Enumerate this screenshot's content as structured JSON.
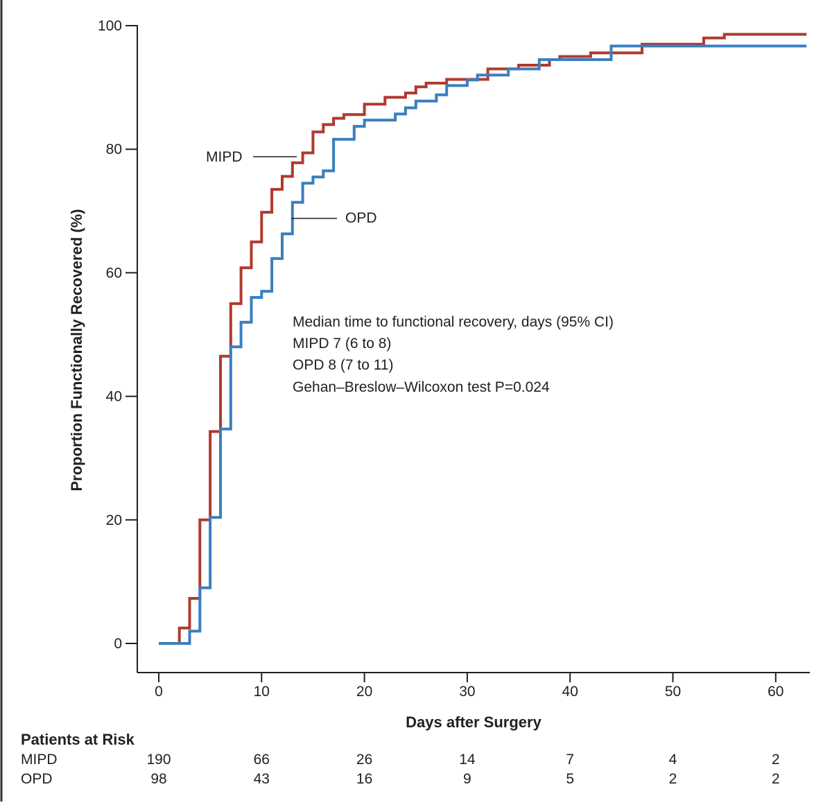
{
  "chart_data": {
    "type": "line",
    "subtype": "kaplan-meier step curve (cumulative incidence)",
    "xlabel": "Days after Surgery",
    "ylabel": "Proportion Functionally Recovered (%)",
    "xlim": [
      -2,
      63
    ],
    "ylim": [
      -5,
      100
    ],
    "xticks": [
      0,
      10,
      20,
      30,
      40,
      50,
      60
    ],
    "yticks": [
      0,
      20,
      40,
      60,
      80,
      100
    ],
    "series": [
      {
        "name": "MIPD",
        "color": "#b03a2e",
        "points": [
          [
            0,
            0
          ],
          [
            2,
            0
          ],
          [
            2,
            2.5
          ],
          [
            3,
            2.5
          ],
          [
            3,
            7.3
          ],
          [
            4,
            7.3
          ],
          [
            4,
            20
          ],
          [
            5,
            20
          ],
          [
            5,
            34.3
          ],
          [
            6,
            34.3
          ],
          [
            6,
            46.5
          ],
          [
            7,
            46.5
          ],
          [
            7,
            55
          ],
          [
            8,
            55
          ],
          [
            8,
            60.8
          ],
          [
            9,
            60.8
          ],
          [
            9,
            65
          ],
          [
            10,
            65
          ],
          [
            10,
            69.8
          ],
          [
            11,
            69.8
          ],
          [
            11,
            73.5
          ],
          [
            12,
            73.5
          ],
          [
            12,
            75.6
          ],
          [
            13,
            75.6
          ],
          [
            13,
            77.8
          ],
          [
            14,
            77.8
          ],
          [
            14,
            79.4
          ],
          [
            15,
            79.4
          ],
          [
            15,
            82.8
          ],
          [
            16,
            82.8
          ],
          [
            16,
            84
          ],
          [
            17,
            84
          ],
          [
            17,
            85
          ],
          [
            18,
            85
          ],
          [
            18,
            85.6
          ],
          [
            20,
            85.6
          ],
          [
            20,
            87.3
          ],
          [
            22,
            87.3
          ],
          [
            22,
            88.4
          ],
          [
            24,
            88.4
          ],
          [
            24,
            89.1
          ],
          [
            25,
            89.1
          ],
          [
            25,
            90.1
          ],
          [
            26,
            90.1
          ],
          [
            26,
            90.7
          ],
          [
            28,
            90.7
          ],
          [
            28,
            91.3
          ],
          [
            32,
            91.3
          ],
          [
            32,
            93
          ],
          [
            35,
            93
          ],
          [
            35,
            93.6
          ],
          [
            38,
            93.6
          ],
          [
            38,
            94.5
          ],
          [
            39,
            94.5
          ],
          [
            39,
            95
          ],
          [
            42,
            95
          ],
          [
            42,
            95.6
          ],
          [
            47,
            95.6
          ],
          [
            47,
            97
          ],
          [
            53,
            97
          ],
          [
            53,
            98
          ],
          [
            55,
            98
          ],
          [
            55,
            98.6
          ],
          [
            63,
            98.6
          ]
        ]
      },
      {
        "name": "OPD",
        "color": "#3a7fbf",
        "points": [
          [
            0,
            0
          ],
          [
            3,
            0
          ],
          [
            3,
            2
          ],
          [
            4,
            2
          ],
          [
            4,
            9
          ],
          [
            5,
            9
          ],
          [
            5,
            20.4
          ],
          [
            6,
            20.4
          ],
          [
            6,
            34.7
          ],
          [
            7,
            34.7
          ],
          [
            7,
            48
          ],
          [
            8,
            48
          ],
          [
            8,
            52
          ],
          [
            9,
            52
          ],
          [
            9,
            56
          ],
          [
            10,
            56
          ],
          [
            10,
            57
          ],
          [
            11,
            57
          ],
          [
            11,
            62.3
          ],
          [
            12,
            62.3
          ],
          [
            12,
            66.3
          ],
          [
            13,
            66.3
          ],
          [
            13,
            71.4
          ],
          [
            14,
            71.4
          ],
          [
            14,
            74.5
          ],
          [
            15,
            74.5
          ],
          [
            15,
            75.5
          ],
          [
            16,
            75.5
          ],
          [
            16,
            76.5
          ],
          [
            17,
            76.5
          ],
          [
            17,
            81.6
          ],
          [
            19,
            81.6
          ],
          [
            19,
            83.7
          ],
          [
            20,
            83.7
          ],
          [
            20,
            84.7
          ],
          [
            23,
            84.7
          ],
          [
            23,
            85.7
          ],
          [
            24,
            85.7
          ],
          [
            24,
            86.7
          ],
          [
            25,
            86.7
          ],
          [
            25,
            87.8
          ],
          [
            27,
            87.8
          ],
          [
            27,
            88.8
          ],
          [
            28,
            88.8
          ],
          [
            28,
            90.3
          ],
          [
            30,
            90.3
          ],
          [
            30,
            91.2
          ],
          [
            31,
            91.2
          ],
          [
            31,
            92
          ],
          [
            34,
            92
          ],
          [
            34,
            93
          ],
          [
            37,
            93
          ],
          [
            37,
            94.5
          ],
          [
            44,
            94.5
          ],
          [
            44,
            96.7
          ],
          [
            63,
            96.7
          ]
        ]
      }
    ],
    "curve_labels": [
      {
        "text": "MIPD",
        "series": "MIPD"
      },
      {
        "text": "OPD",
        "series": "OPD"
      }
    ],
    "annotation": {
      "heading": "Median time to functional recovery, days (95% CI)",
      "lines": [
        "MIPD 7 (6 to 8)",
        "OPD 8 (7 to 11)",
        "Gehan–Breslow–Wilcoxon test P=0.024"
      ]
    },
    "risk_table": {
      "title": "Patients at Risk",
      "timepoints": [
        0,
        10,
        20,
        30,
        40,
        50,
        60
      ],
      "rows": [
        {
          "label": "MIPD",
          "values": [
            "190",
            "66",
            "26",
            "14",
            "7",
            "4",
            "2"
          ]
        },
        {
          "label": "OPD",
          "values": [
            "98",
            "43",
            "16",
            "9",
            "5",
            "2",
            "2"
          ]
        }
      ]
    },
    "legend": "inline labels with leader lines",
    "grid": false
  }
}
